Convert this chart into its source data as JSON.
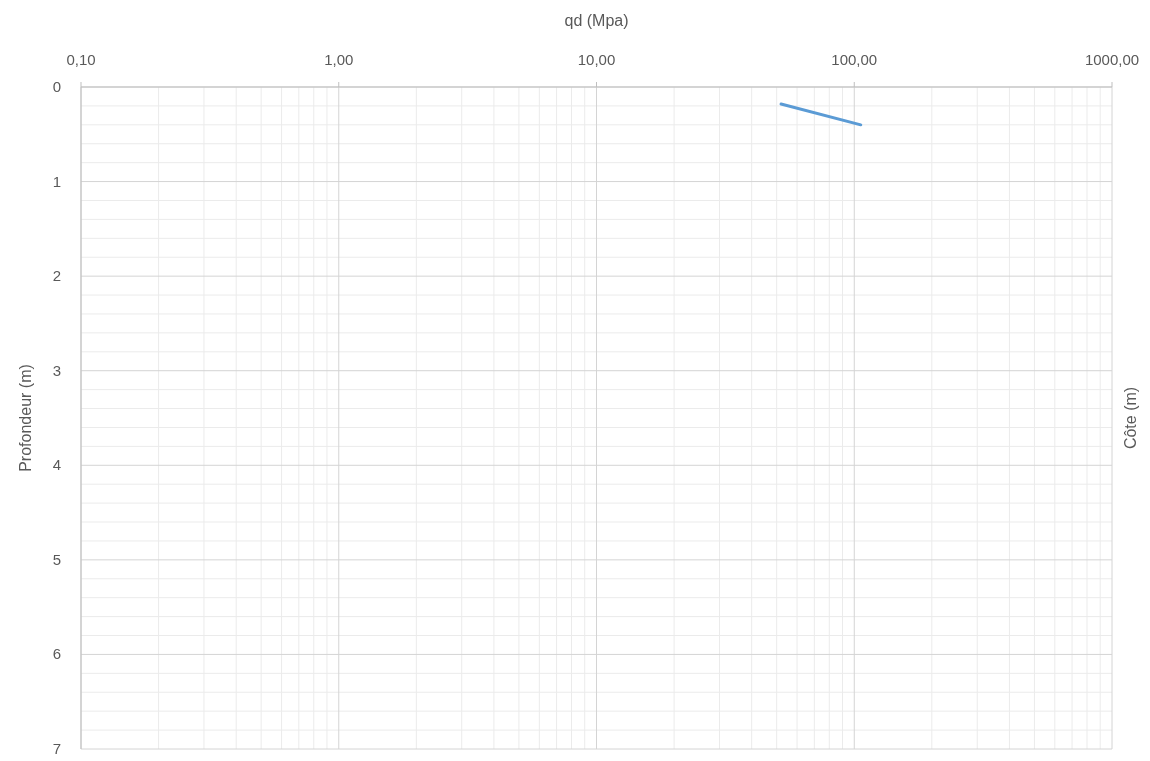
{
  "chart_data": {
    "type": "line",
    "xlabel": "qd (Mpa)",
    "ylabel": "Profondeur (m)",
    "y2label": "Côte (m)",
    "log": "x",
    "grid": true,
    "xlim": [
      0.1,
      1000
    ],
    "xticks": [
      {
        "value": 0.1,
        "label": "0,10"
      },
      {
        "value": 1,
        "label": "1,00"
      },
      {
        "value": 10,
        "label": "10,00"
      },
      {
        "value": 100,
        "label": "100,00"
      },
      {
        "value": 1000,
        "label": "1000,00"
      }
    ],
    "ylim": [
      7,
      0
    ],
    "yticks": [
      0,
      1,
      2,
      3,
      4,
      5,
      6,
      7
    ],
    "series": [
      {
        "color": "#5b9bd5",
        "x": [
          52,
          106
        ],
        "values": [
          0.18,
          0.4
        ]
      }
    ]
  }
}
